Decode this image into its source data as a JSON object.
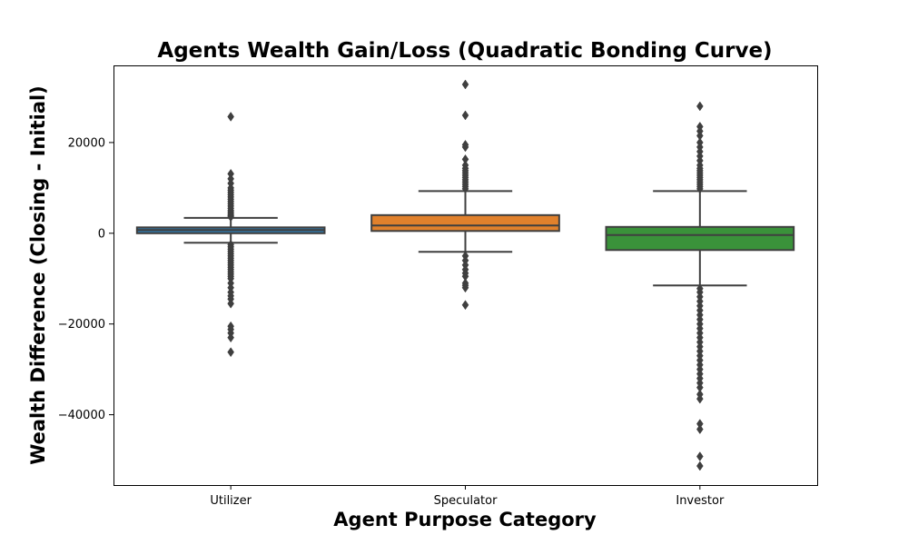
{
  "chart_data": {
    "type": "box",
    "title": "Agents Wealth Gain/Loss (Quadratic Bonding Curve)",
    "xlabel": "Agent Purpose Category",
    "ylabel": "Wealth Difference (Closing - Initial)",
    "ylim": [
      -55500,
      37000
    ],
    "yticks": [
      20000,
      0,
      -20000,
      -40000
    ],
    "ytick_labels": [
      "20000",
      "0",
      "−20000",
      "−40000"
    ],
    "grid": false,
    "series": [
      {
        "name": "Utilizer",
        "color": "#3274a1",
        "q1": 0,
        "median": 700,
        "q3": 1300,
        "whisker_low": -2100,
        "whisker_high": 3400,
        "outliers": [
          25700,
          13100,
          12000,
          11000,
          10000,
          9500,
          9000,
          8500,
          8000,
          7500,
          7000,
          6500,
          6000,
          5500,
          5000,
          4600,
          4200,
          3900,
          3600,
          -2500,
          -3000,
          -3500,
          -4000,
          -4500,
          -5000,
          -5500,
          -6000,
          -6500,
          -7000,
          -7500,
          -8000,
          -8500,
          -9000,
          -9500,
          -10000,
          -11000,
          -12000,
          -13000,
          -13800,
          -14500,
          -15500,
          -20500,
          -21200,
          -22000,
          -23000,
          -26200
        ]
      },
      {
        "name": "Speculator",
        "color": "#e1812c",
        "q1": 500,
        "median": 1700,
        "q3": 4000,
        "whisker_low": -4100,
        "whisker_high": 9300,
        "outliers": [
          32800,
          26000,
          19500,
          19000,
          16300,
          15000,
          14300,
          13800,
          13300,
          12800,
          12300,
          11800,
          11300,
          10800,
          10300,
          9800,
          -5000,
          -6000,
          -7000,
          -8000,
          -8800,
          -9500,
          -11000,
          -11500,
          -12000,
          -15800
        ]
      },
      {
        "name": "Investor",
        "color": "#3a923a",
        "q1": -3700,
        "median": -400,
        "q3": 1400,
        "whisker_low": -11500,
        "whisker_high": 9300,
        "outliers": [
          28000,
          23500,
          22500,
          21500,
          20000,
          19000,
          18000,
          17000,
          16000,
          15000,
          14300,
          13800,
          13300,
          12800,
          12300,
          11800,
          11300,
          10800,
          10300,
          9800,
          -12200,
          -13000,
          -14000,
          -15000,
          -16000,
          -17000,
          -18000,
          -19000,
          -20000,
          -21000,
          -22000,
          -23000,
          -24000,
          -25000,
          -26000,
          -27000,
          -28000,
          -29000,
          -30000,
          -31000,
          -32000,
          -33000,
          -34000,
          -35500,
          -36500,
          -42000,
          -43200,
          -49200,
          -51300
        ]
      }
    ]
  }
}
